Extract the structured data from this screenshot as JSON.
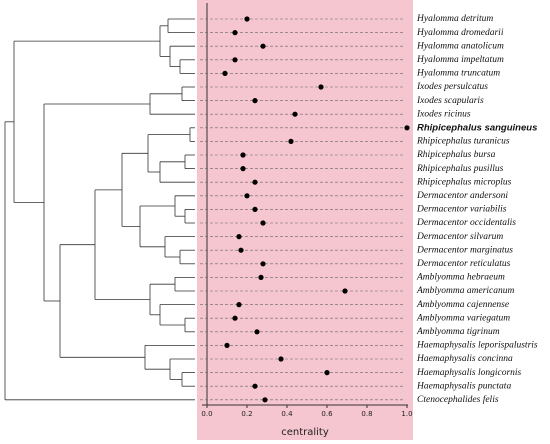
{
  "chart_data": {
    "type": "dot",
    "xlabel": "centrality",
    "categories": [
      "Hyalomma detritum",
      "Hyalomma dromedarii",
      "Hyalomma anatolicum",
      "Hyalomma impeltatum",
      "Hyalomma truncatum",
      "Ixodes persulcatus",
      "Ixodes scapularis",
      "Ixodes ricinus",
      "Rhipicephalus sanguineus",
      "Rhipicephalus turanicus",
      "Rhipicephalus bursa",
      "Rhipicephalus pusillus",
      "Rhipicephalus microplus",
      "Dermacentor andersoni",
      "Dermacentor variabilis",
      "Dermacentor occidentalis",
      "Dermacentor silvarum",
      "Dermacentor marginatus",
      "Dermacentor reticulatus",
      "Amblyomma hebraeum",
      "Amblyomma americanum",
      "Amblyomma cajennense",
      "Amblyomma variegatum",
      "Amblyomma tigrinum",
      "Haemaphysalis leporispalustris",
      "Haemaphysalis concinna",
      "Haemaphysalis longicornis",
      "Haemaphysalis punctata",
      "Ctenocephalides felis"
    ],
    "values": [
      0.2,
      0.14,
      0.28,
      0.14,
      0.09,
      0.57,
      0.24,
      0.44,
      1.0,
      0.42,
      0.18,
      0.18,
      0.24,
      0.2,
      0.24,
      0.28,
      0.16,
      0.17,
      0.28,
      0.27,
      0.69,
      0.16,
      0.14,
      0.25,
      0.1,
      0.37,
      0.6,
      0.24,
      0.29
    ],
    "color": "#000000",
    "xlim": [
      -0.05,
      1.03
    ],
    "xticks": [
      {
        "value": 0,
        "label": "0.0"
      },
      0.2,
      0.4,
      0.6,
      0.8,
      {
        "value": 1,
        "label": "1.0"
      }
    ]
  }
}
